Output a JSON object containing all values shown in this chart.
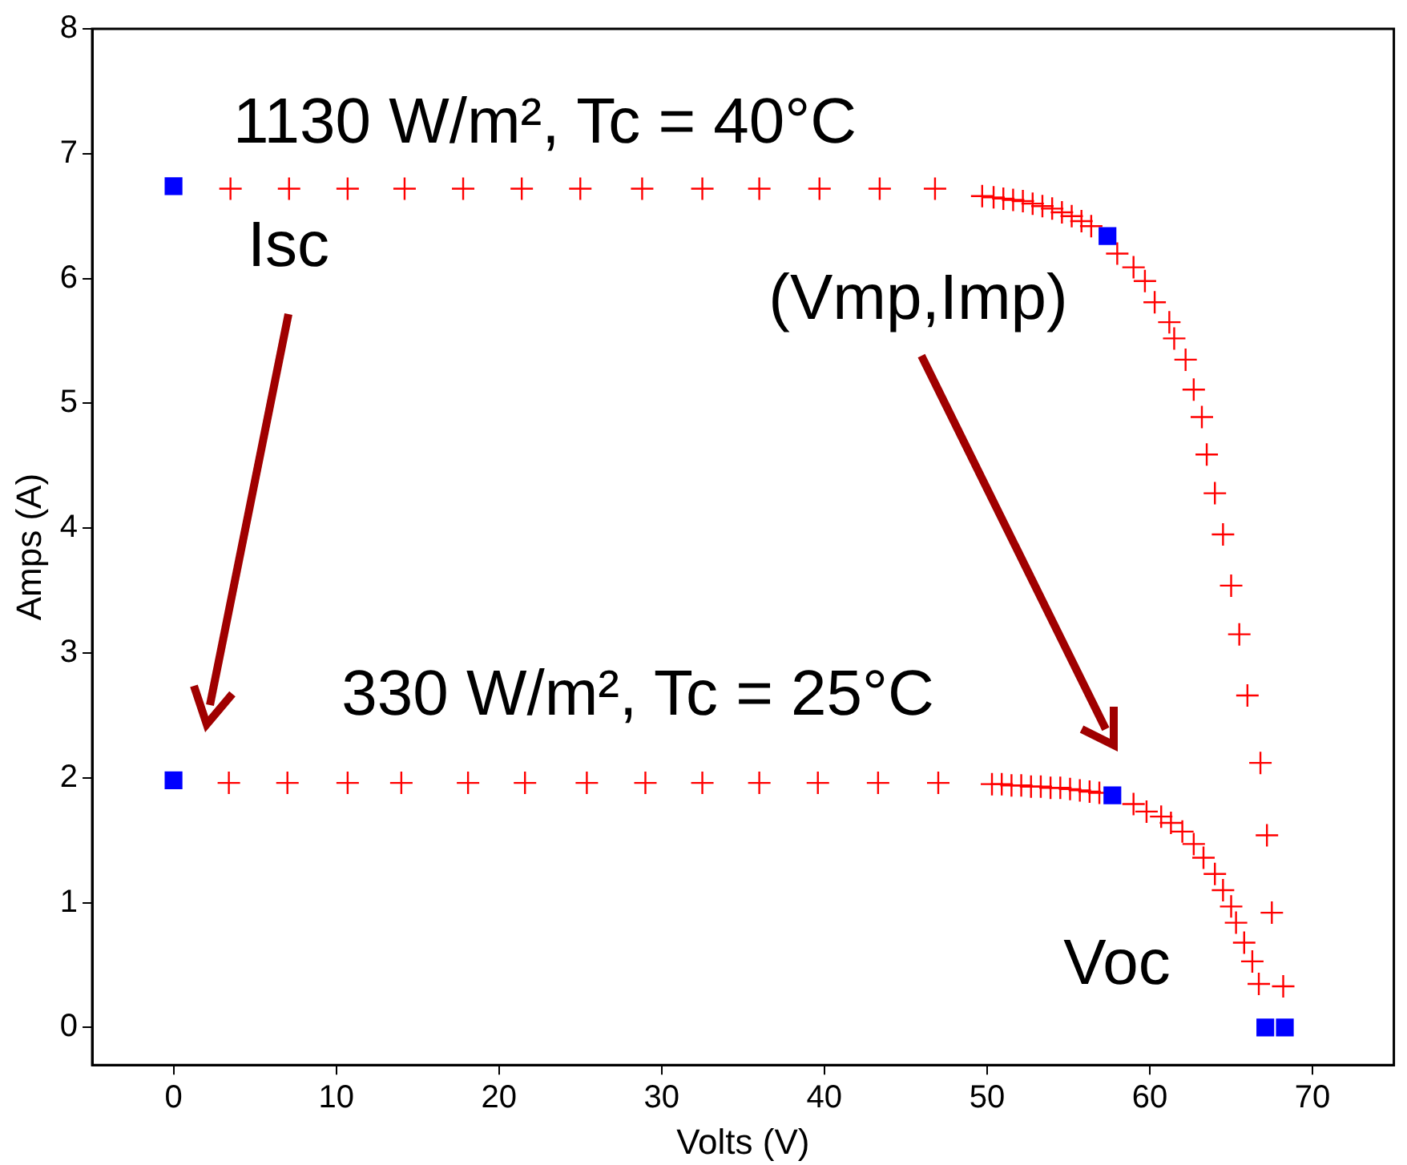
{
  "chart_data": {
    "type": "scatter",
    "xlabel": "Volts (V)",
    "ylabel": "Amps (A)",
    "xlim": [
      -5,
      75
    ],
    "xticks": [
      0,
      10,
      20,
      30,
      40,
      50,
      60,
      70
    ],
    "ylim": [
      -0.3,
      8
    ],
    "yticks": [
      0,
      1,
      2,
      3,
      4,
      5,
      6,
      7,
      8
    ],
    "grid": false,
    "legend": false,
    "series": [
      {
        "marker": "cross",
        "color": "#ff0000",
        "x": [
          3.5,
          7.1,
          10.7,
          14.2,
          17.8,
          21.4,
          25.0,
          28.8,
          32.5,
          36.0,
          39.7,
          43.4,
          46.8,
          49.7,
          50.4,
          51.0,
          51.6,
          52.2,
          52.8,
          53.4,
          54.0,
          54.6,
          55.2,
          55.8,
          56.4,
          58.0,
          59.0,
          59.7,
          60.3,
          61.2,
          61.5,
          62.2,
          62.7,
          63.2,
          63.5,
          64.0,
          64.5,
          65.0,
          65.5,
          66.0,
          66.8,
          67.2,
          67.5,
          68.2
        ],
        "values": [
          6.72,
          6.72,
          6.72,
          6.72,
          6.72,
          6.72,
          6.72,
          6.72,
          6.72,
          6.72,
          6.72,
          6.72,
          6.72,
          6.66,
          6.65,
          6.64,
          6.63,
          6.62,
          6.6,
          6.58,
          6.56,
          6.53,
          6.5,
          6.46,
          6.42,
          6.2,
          6.09,
          5.98,
          5.81,
          5.65,
          5.52,
          5.35,
          5.11,
          4.89,
          4.59,
          4.28,
          3.95,
          3.54,
          3.15,
          2.66,
          2.12,
          1.54,
          0.92,
          0.33
        ]
      },
      {
        "marker": "cross",
        "color": "#ff0000",
        "x": [
          3.4,
          7.0,
          10.7,
          14.0,
          18.1,
          21.6,
          25.4,
          29.0,
          32.5,
          36.0,
          39.6,
          43.3,
          47.0,
          50.3,
          50.9,
          51.5,
          52.1,
          52.7,
          53.3,
          53.9,
          54.5,
          55.1,
          55.7,
          56.3,
          56.9,
          59.0,
          59.8,
          60.7,
          61.3,
          62.0,
          62.7,
          63.3,
          64.0,
          64.5,
          65.0,
          65.3,
          65.8,
          66.3,
          66.7
        ],
        "values": [
          1.96,
          1.96,
          1.96,
          1.96,
          1.96,
          1.96,
          1.96,
          1.96,
          1.96,
          1.96,
          1.96,
          1.96,
          1.96,
          1.95,
          1.95,
          1.94,
          1.94,
          1.93,
          1.93,
          1.92,
          1.92,
          1.91,
          1.9,
          1.89,
          1.88,
          1.79,
          1.73,
          1.69,
          1.64,
          1.57,
          1.47,
          1.36,
          1.23,
          1.1,
          0.97,
          0.84,
          0.68,
          0.53,
          0.35
        ]
      },
      {
        "marker": "square",
        "color": "#0000ff",
        "x": [
          0,
          57.4,
          68.3,
          0,
          57.7,
          67.1
        ],
        "values": [
          6.74,
          6.34,
          0,
          1.98,
          1.86,
          0
        ]
      }
    ],
    "annotations": [
      "1130 W/m², Tc = 40°C",
      "Isc",
      "(Vmp,Imp)",
      "330 W/m², Tc = 25°C",
      "Voc"
    ]
  }
}
